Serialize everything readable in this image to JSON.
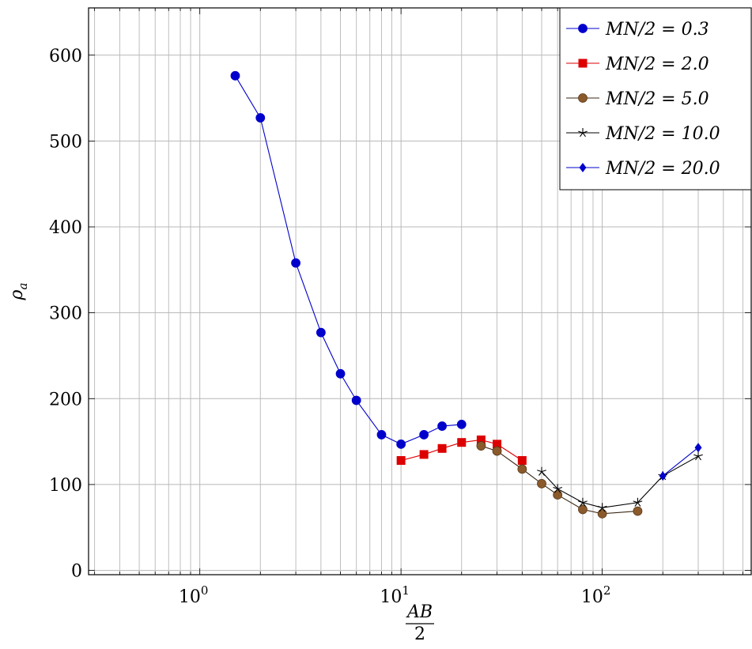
{
  "chart_data": {
    "type": "line",
    "title": "",
    "xlabel": "AB/2",
    "xlabel_num": "AB",
    "xlabel_den": "2",
    "ylabel": "ρ_a",
    "ylabel_main": "ρ",
    "ylabel_sub": "a",
    "xscale": "log",
    "xlim": [
      0.28,
      550
    ],
    "ylim": [
      -5,
      655
    ],
    "grid": true,
    "legend_position": "top-right",
    "yticks": [
      0,
      100,
      200,
      300,
      400,
      500,
      600
    ],
    "ytick_labels": [
      "0",
      "100",
      "200",
      "300",
      "400",
      "500",
      "600"
    ],
    "xticks": [
      1,
      10,
      100
    ],
    "xtick_labels": [
      {
        "base": "10",
        "exp": "0"
      },
      {
        "base": "10",
        "exp": "1"
      },
      {
        "base": "10",
        "exp": "2"
      }
    ],
    "series": [
      {
        "name": "MN/2 = 0.3",
        "color": "#0000cc",
        "marker": "circle",
        "x": [
          1.5,
          2,
          3,
          4,
          5,
          6,
          8,
          10,
          13,
          16,
          20
        ],
        "y": [
          576,
          527,
          358,
          277,
          229,
          198,
          158,
          147,
          158,
          168,
          170
        ]
      },
      {
        "name": "MN/2 = 2.0",
        "color": "#dd0000",
        "marker": "square",
        "x": [
          10,
          13,
          16,
          20,
          25,
          30,
          40
        ],
        "y": [
          128,
          135,
          142,
          149,
          152,
          147,
          128
        ]
      },
      {
        "name": "MN/2 = 5.0",
        "color": "#8b5a2b",
        "marker": "circle",
        "x": [
          25,
          30,
          40,
          50,
          60,
          80,
          100,
          150
        ],
        "y": [
          145,
          139,
          118,
          101,
          88,
          71,
          66,
          69
        ]
      },
      {
        "name": "MN/2 = 10.0",
        "color": "#000000",
        "marker": "star",
        "x": [
          50,
          60,
          80,
          100,
          150,
          200,
          300
        ],
        "y": [
          115,
          95,
          79,
          73,
          79,
          110,
          133
        ]
      },
      {
        "name": "MN/2 = 20.0",
        "color": "#0000cc",
        "marker": "diamond",
        "x": [
          200,
          300
        ],
        "y": [
          110,
          143
        ]
      }
    ]
  }
}
